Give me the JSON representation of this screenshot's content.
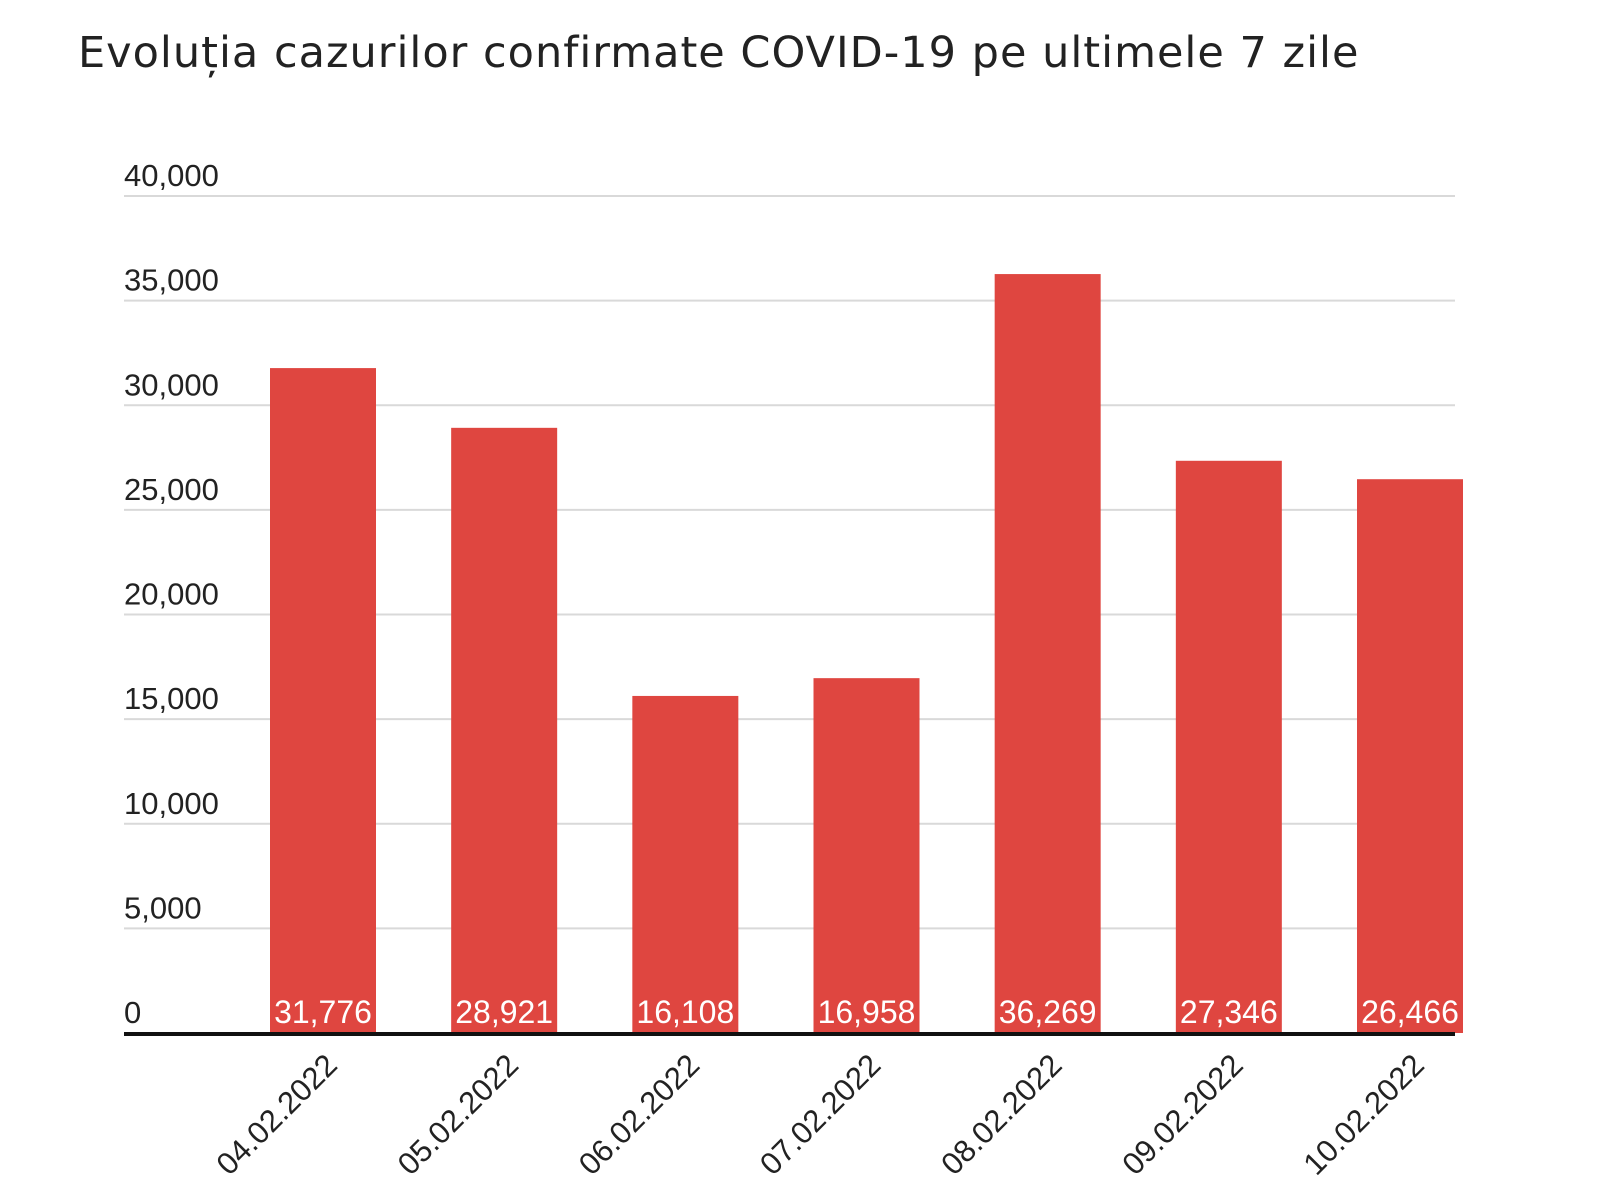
{
  "chart_data": {
    "type": "bar",
    "title": "Evoluția cazurilor confirmate COVID-19 pe ultimele 7 zile",
    "categories": [
      "04.02.2022",
      "05.02.2022",
      "06.02.2022",
      "07.02.2022",
      "08.02.2022",
      "09.02.2022",
      "10.02.2022"
    ],
    "values": [
      31776,
      28921,
      16108,
      16958,
      36269,
      27346,
      26466
    ],
    "data_labels": [
      "31,776",
      "28,921",
      "16,108",
      "16,958",
      "36,269",
      "27,346",
      "26,466"
    ],
    "xlabel": "",
    "ylabel": "",
    "ylim": [
      0,
      40000
    ],
    "yticks": [
      0,
      5000,
      10000,
      15000,
      20000,
      25000,
      30000,
      35000,
      40000
    ],
    "ytick_labels": [
      "0",
      "5,000",
      "10,000",
      "15,000",
      "20,000",
      "25,000",
      "30,000",
      "35,000",
      "40,000"
    ],
    "grid": true,
    "legend": "none",
    "bar_color": "#df4640",
    "grid_color": "#d9d9d9",
    "axis_color": "#111111"
  }
}
